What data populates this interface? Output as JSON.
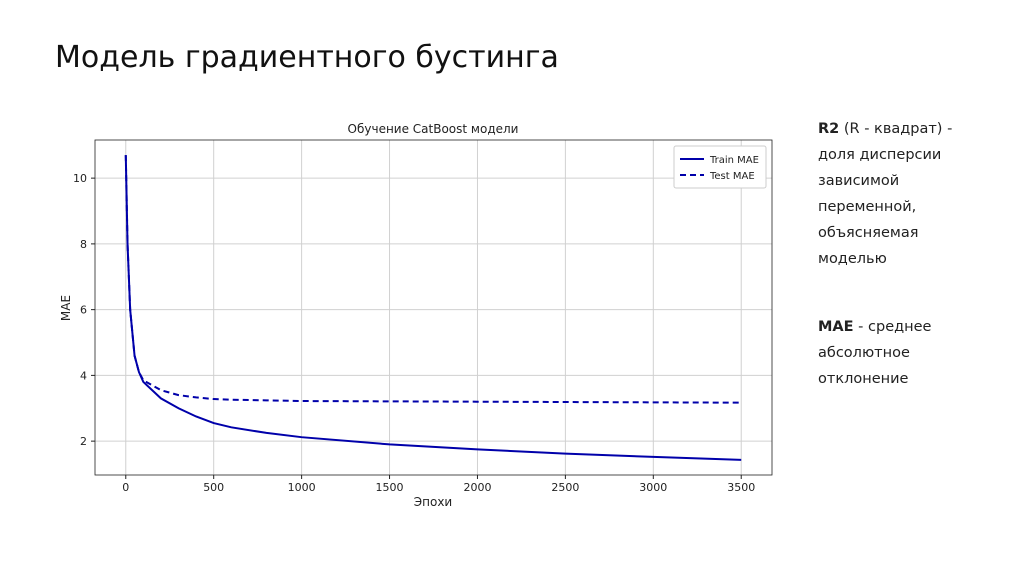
{
  "title": "Модель градиентного бустинга",
  "chart_data": {
    "type": "line",
    "title": "Обучение CatBoost модели",
    "x_label": "Эпохи",
    "y_label": "MAE",
    "x": [
      0,
      10,
      25,
      50,
      75,
      100,
      200,
      300,
      400,
      500,
      600,
      800,
      1000,
      1500,
      2000,
      2500,
      3000,
      3500
    ],
    "series": [
      {
        "name": "Train MAE",
        "color": "#0000aa",
        "linestyle": "solid",
        "values": [
          10.7,
          8,
          6,
          4.6,
          4.1,
          3.8,
          3.3,
          3.0,
          2.75,
          2.55,
          2.42,
          2.25,
          2.12,
          1.9,
          1.75,
          1.62,
          1.52,
          1.43
        ]
      },
      {
        "name": "Test MAE",
        "color": "#0000aa",
        "linestyle": "dashed",
        "values": [
          10.7,
          8,
          6,
          4.6,
          4.1,
          3.85,
          3.55,
          3.4,
          3.33,
          3.28,
          3.26,
          3.24,
          3.22,
          3.21,
          3.2,
          3.19,
          3.18,
          3.17
        ]
      }
    ],
    "xlim": [
      -175,
      3675
    ],
    "xticks": [
      0,
      500,
      1000,
      1500,
      2000,
      2500,
      3000,
      3500
    ],
    "ylim": [
      0.97,
      11.16
    ],
    "yticks": [
      2,
      4,
      6,
      8,
      10
    ],
    "grid": true,
    "legend": "upper right"
  },
  "notes": [
    {
      "term": "R2",
      "text": "(R - квадрат) - доля дисперсии зависимой переменной, объясняемая моделью"
    },
    {
      "term": "MAE",
      "text": "- среднее абсолютное отклонение"
    }
  ]
}
